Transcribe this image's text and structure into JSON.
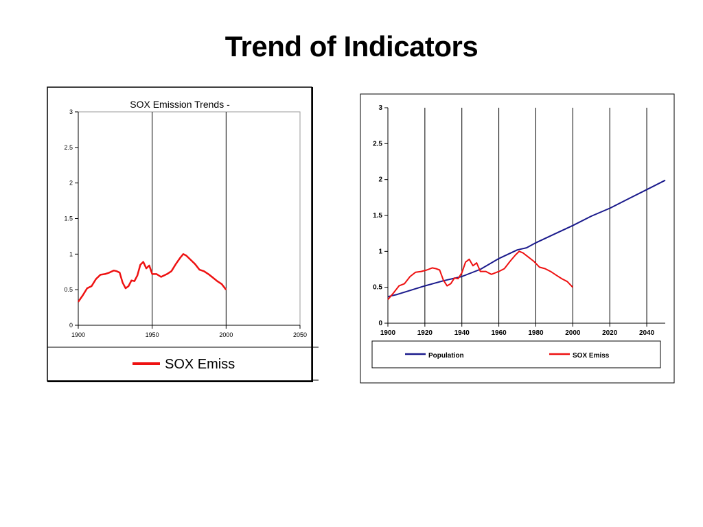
{
  "slide": {
    "title": "Trend of Indicators"
  },
  "colors": {
    "sox": "#ee1111",
    "population": "#1a1a8c",
    "frame": "#000000"
  },
  "chart_data": [
    {
      "type": "line",
      "title": "SOX Emission Trends -",
      "xlabel": "",
      "ylabel": "",
      "xlim": [
        1900,
        2050
      ],
      "ylim": [
        0,
        3
      ],
      "x_ticks": [
        "1900",
        "1950",
        "2000",
        "2050"
      ],
      "y_ticks": [
        "0",
        "0.5",
        "1",
        "1.5",
        "2",
        "2.5",
        "3"
      ],
      "vertical_gridlines_at": [
        1950,
        2000,
        2050
      ],
      "legend": {
        "position": "bottom",
        "entries": [
          "SOX Emiss"
        ]
      },
      "series": [
        {
          "name": "SOX Emiss",
          "x": [
            1900,
            1903,
            1906,
            1909,
            1912,
            1915,
            1918,
            1921,
            1924,
            1926,
            1928,
            1930,
            1932,
            1934,
            1936,
            1938,
            1940,
            1942,
            1944,
            1946,
            1948,
            1950,
            1953,
            1956,
            1960,
            1963,
            1966,
            1969,
            1971,
            1973,
            1976,
            1979,
            1982,
            1985,
            1988,
            1991,
            1994,
            1997,
            2000
          ],
          "y": [
            0.33,
            0.42,
            0.52,
            0.55,
            0.65,
            0.71,
            0.72,
            0.74,
            0.77,
            0.76,
            0.74,
            0.6,
            0.52,
            0.55,
            0.63,
            0.62,
            0.7,
            0.85,
            0.89,
            0.8,
            0.84,
            0.72,
            0.72,
            0.68,
            0.72,
            0.76,
            0.86,
            0.95,
            1.0,
            0.98,
            0.92,
            0.86,
            0.78,
            0.76,
            0.72,
            0.67,
            0.62,
            0.58,
            0.5
          ]
        }
      ]
    },
    {
      "type": "line",
      "title": "",
      "xlabel": "",
      "ylabel": "",
      "xlim": [
        1900,
        2050
      ],
      "ylim": [
        0,
        3
      ],
      "x_ticks": [
        "1900",
        "1920",
        "1940",
        "1960",
        "1980",
        "2000",
        "2020",
        "2040"
      ],
      "y_ticks": [
        "0",
        "0.5",
        "1",
        "1.5",
        "2",
        "2.5",
        "3"
      ],
      "vertical_gridlines_at": [
        1920,
        1940,
        1960,
        1980,
        2000,
        2020,
        2040
      ],
      "legend": {
        "position": "bottom",
        "entries": [
          "Population",
          "SOX Emiss"
        ]
      },
      "series": [
        {
          "name": "Population",
          "x": [
            1900,
            1905,
            1910,
            1920,
            1930,
            1940,
            1950,
            1960,
            1970,
            1975,
            1980,
            1990,
            2000,
            2010,
            2020,
            2030,
            2040,
            2050
          ],
          "y": [
            0.37,
            0.4,
            0.44,
            0.52,
            0.59,
            0.65,
            0.75,
            0.9,
            1.02,
            1.05,
            1.12,
            1.24,
            1.36,
            1.49,
            1.6,
            1.73,
            1.86,
            1.99
          ]
        },
        {
          "name": "SOX Emiss",
          "x": [
            1900,
            1903,
            1906,
            1909,
            1912,
            1915,
            1918,
            1921,
            1924,
            1926,
            1928,
            1930,
            1932,
            1934,
            1936,
            1938,
            1940,
            1942,
            1944,
            1946,
            1948,
            1950,
            1953,
            1956,
            1960,
            1963,
            1966,
            1969,
            1971,
            1973,
            1976,
            1979,
            1982,
            1985,
            1988,
            1991,
            1994,
            1997,
            2000
          ],
          "y": [
            0.33,
            0.42,
            0.52,
            0.55,
            0.65,
            0.71,
            0.72,
            0.74,
            0.77,
            0.76,
            0.74,
            0.6,
            0.52,
            0.55,
            0.63,
            0.62,
            0.7,
            0.85,
            0.89,
            0.8,
            0.84,
            0.72,
            0.72,
            0.68,
            0.72,
            0.76,
            0.86,
            0.95,
            1.0,
            0.98,
            0.92,
            0.86,
            0.78,
            0.76,
            0.72,
            0.67,
            0.62,
            0.58,
            0.5
          ]
        }
      ]
    }
  ]
}
